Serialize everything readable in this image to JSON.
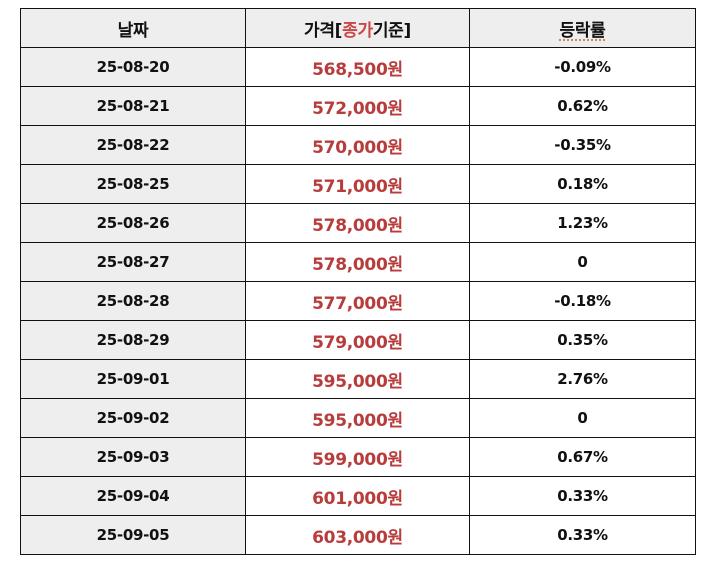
{
  "colors": {
    "price_text": "#b83c3c",
    "header_accent": "#c8484a",
    "header_bg": "#eeeeee",
    "date_col_bg": "#eeeeee",
    "border": "#111111"
  },
  "table": {
    "headers": {
      "date": "날짜",
      "price_prefix": "가격[",
      "price_accent": "종가",
      "price_suffix": "기준]",
      "rate": "등락률"
    },
    "rows": [
      {
        "date": "25-08-20",
        "price": "568,500원",
        "rate": "-0.09%"
      },
      {
        "date": "25-08-21",
        "price": "572,000원",
        "rate": "0.62%"
      },
      {
        "date": "25-08-22",
        "price": "570,000원",
        "rate": "-0.35%"
      },
      {
        "date": "25-08-25",
        "price": "571,000원",
        "rate": "0.18%"
      },
      {
        "date": "25-08-26",
        "price": "578,000원",
        "rate": "1.23%"
      },
      {
        "date": "25-08-27",
        "price": "578,000원",
        "rate": "0"
      },
      {
        "date": "25-08-28",
        "price": "577,000원",
        "rate": "-0.18%"
      },
      {
        "date": "25-08-29",
        "price": "579,000원",
        "rate": "0.35%"
      },
      {
        "date": "25-09-01",
        "price": "595,000원",
        "rate": "2.76%"
      },
      {
        "date": "25-09-02",
        "price": "595,000원",
        "rate": "0"
      },
      {
        "date": "25-09-03",
        "price": "599,000원",
        "rate": "0.67%"
      },
      {
        "date": "25-09-04",
        "price": "601,000원",
        "rate": "0.33%"
      },
      {
        "date": "25-09-05",
        "price": "603,000원",
        "rate": "0.33%"
      }
    ]
  }
}
